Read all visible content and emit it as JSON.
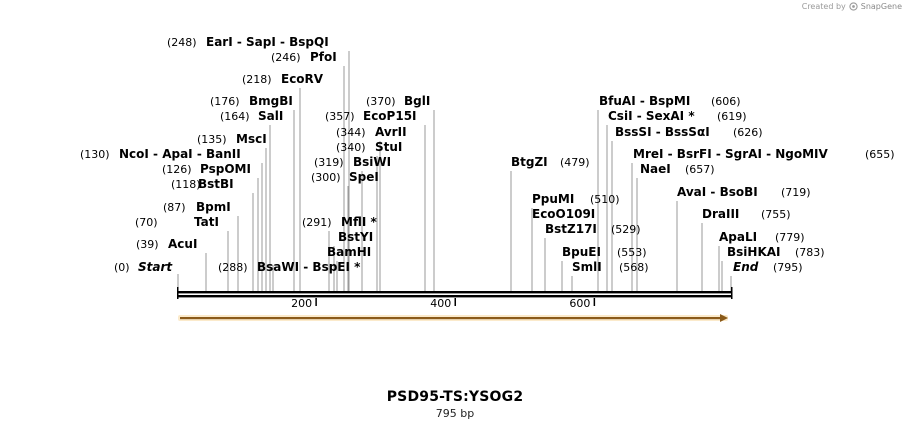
{
  "watermark": {
    "prefix": "Created by",
    "brand": "SnapGene"
  },
  "sequence": {
    "name": "PSD95-TS:YSOG2",
    "length_label": "795 bp",
    "length": 795
  },
  "ticks": [
    {
      "label": "200",
      "pos": 200
    },
    {
      "label": "400",
      "pos": 400
    },
    {
      "label": "600",
      "pos": 600
    }
  ],
  "features": [
    {
      "name": "orange-arrow",
      "start": 1,
      "end": 795,
      "direction": "forward",
      "color": "#f0a020"
    }
  ],
  "sites": [
    {
      "id": "start",
      "pos": "(0)",
      "name": "Start",
      "italic": true
    },
    {
      "id": "acui",
      "pos": "(39)",
      "name": "AcuI"
    },
    {
      "id": "tati",
      "pos": "(70)",
      "name": "TatI"
    },
    {
      "id": "bpmi",
      "pos": "(87)",
      "name": "BpmI"
    },
    {
      "id": "bstbi",
      "pos": "(118)",
      "name": "BstBI"
    },
    {
      "id": "pspomi",
      "pos": "(126)",
      "name": "PspOMI"
    },
    {
      "id": "ncoi",
      "pos": "(130)",
      "name": "NcoI  - ApaI  - BanII"
    },
    {
      "id": "msci",
      "pos": "(135)",
      "name": "MscI"
    },
    {
      "id": "sali",
      "pos": "(164)",
      "name": "SalI"
    },
    {
      "id": "bmgbi",
      "pos": "(176)",
      "name": "BmgBI"
    },
    {
      "id": "ecorv",
      "pos": "(218)",
      "name": "EcoRV"
    },
    {
      "id": "pfoi",
      "pos": "(246)",
      "name": "PfoI"
    },
    {
      "id": "eari",
      "pos": "(248)",
      "name": "EarI  - SapI  - BspQI"
    },
    {
      "id": "bsawi",
      "pos": "(288)",
      "name": "BsaWI  - BspEI",
      "star": "*"
    },
    {
      "id": "mfli",
      "pos": "(291)",
      "name": "MflI",
      "star": "*"
    },
    {
      "id": "bstyi",
      "pos": "",
      "name": "BstYI"
    },
    {
      "id": "bamhi",
      "pos": "",
      "name": "BamHI"
    },
    {
      "id": "spei",
      "pos": "(300)",
      "name": "SpeI"
    },
    {
      "id": "bsiwi",
      "pos": "(319)",
      "name": "BsiWI"
    },
    {
      "id": "stui",
      "pos": "(340)",
      "name": "StuI"
    },
    {
      "id": "avrii",
      "pos": "(344)",
      "name": "AvrII"
    },
    {
      "id": "ecop15i",
      "pos": "(357)",
      "name": "EcoP15I"
    },
    {
      "id": "bgli",
      "pos": "(370)",
      "name": "BglI"
    },
    {
      "id": "btgzi",
      "pos": "(479)",
      "name": "BtgZI"
    },
    {
      "id": "ppumi",
      "pos": "(510)",
      "name": "PpuMI"
    },
    {
      "id": "ecoo109i",
      "pos": "",
      "name": "EcoO109I"
    },
    {
      "id": "bstz17i",
      "pos": "(529)",
      "name": "BstZ17I"
    },
    {
      "id": "bpuei",
      "pos": "(553)",
      "name": "BpuEI"
    },
    {
      "id": "smli",
      "pos": "(568)",
      "name": "SmlI"
    },
    {
      "id": "bfuai",
      "pos": "(606)",
      "name": "BfuAI  - BspMI"
    },
    {
      "id": "csii",
      "pos": "(619)",
      "name": "CsiI  - SexAI",
      "star": "*"
    },
    {
      "id": "bsssi",
      "pos": "(626)",
      "name": "BssSI  - BssSαI"
    },
    {
      "id": "mrei",
      "pos": "(655)",
      "name": "MreI  - BsrFI  - SgrAI  - NgoMIV"
    },
    {
      "id": "naei",
      "pos": "(657)",
      "name": "NaeI"
    },
    {
      "id": "avai",
      "pos": "(719)",
      "name": "AvaI  - BsoBI"
    },
    {
      "id": "draiii",
      "pos": "(755)",
      "name": "DraIII"
    },
    {
      "id": "apali",
      "pos": "(779)",
      "name": "ApaLI"
    },
    {
      "id": "bsihkai",
      "pos": "(783)",
      "name": "BsiHKAI"
    },
    {
      "id": "end",
      "pos": "(795)",
      "name": "End",
      "italic": true
    }
  ]
}
